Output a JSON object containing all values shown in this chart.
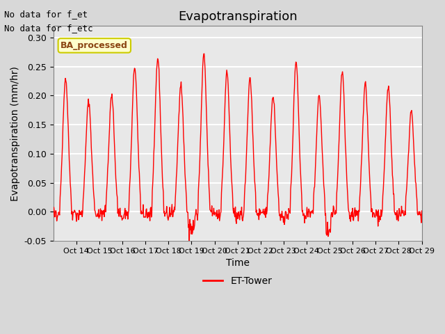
{
  "title": "Evapotranspiration",
  "ylabel": "Evapotranspiration (mm/hr)",
  "xlabel": "Time",
  "ylim": [
    -0.05,
    0.32
  ],
  "yticks": [
    -0.05,
    0.0,
    0.05,
    0.1,
    0.15,
    0.2,
    0.25,
    0.3
  ],
  "xtick_labels": [
    "Oct 14",
    "Oct 15",
    "Oct 16",
    "Oct 17",
    "Oct 18",
    "Oct 19",
    "Oct 20",
    "Oct 21",
    "Oct 22",
    "Oct 23",
    "Oct 24",
    "Oct 25",
    "Oct 26",
    "Oct 27",
    "Oct 28",
    "Oct 29"
  ],
  "line_color": "red",
  "line_width": 1.0,
  "fig_bg_color": "#d8d8d8",
  "plot_bg_color": "#e8e8e8",
  "grid_color": "white",
  "annotation_text1": "No data for f_et",
  "annotation_text2": "No data for f_etc",
  "legend_box_label": "BA_processed",
  "legend_line_label": "ET-Tower",
  "title_fontsize": 13,
  "axis_fontsize": 10,
  "tick_fontsize": 9,
  "daily_peaks": [
    0.23,
    0.19,
    0.2,
    0.25,
    0.265,
    0.22,
    0.27,
    0.24,
    0.23,
    0.2,
    0.26,
    0.2,
    0.24,
    0.22,
    0.215,
    0.175
  ],
  "n_days": 16,
  "n_per_day": 48,
  "random_seed": 42
}
